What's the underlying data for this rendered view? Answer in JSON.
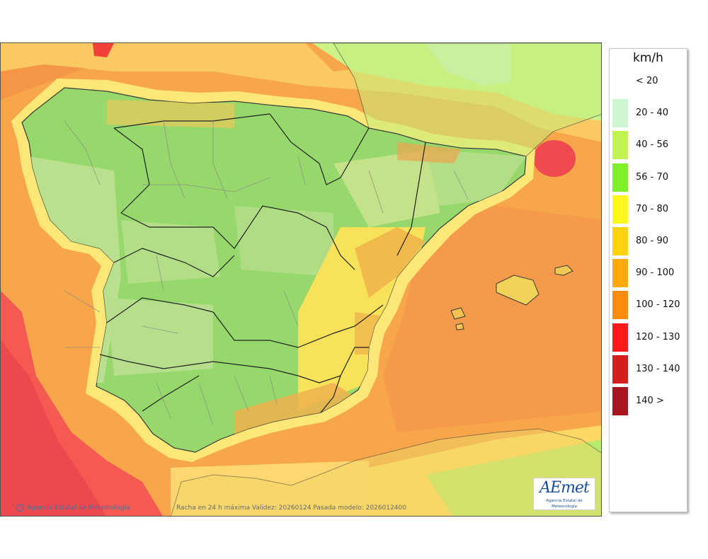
{
  "legend": {
    "unit": "km/h",
    "items": [
      {
        "label": "< 20",
        "color": "#ffffff"
      },
      {
        "label": "20 - 40",
        "color": "#ccf7d0"
      },
      {
        "label": "40 - 56",
        "color": "#c0f450"
      },
      {
        "label": "56 - 70",
        "color": "#7ef028"
      },
      {
        "label": "70 - 80",
        "color": "#fff81c"
      },
      {
        "label": "80 - 90",
        "color": "#ffd20e"
      },
      {
        "label": "90 - 100",
        "color": "#ffa90a"
      },
      {
        "label": "100 - 120",
        "color": "#ff8a0c"
      },
      {
        "label": "120 - 130",
        "color": "#ff1919"
      },
      {
        "label": "130 - 140",
        "color": "#d51f1f"
      },
      {
        "label": "140 >",
        "color": "#a8151e"
      }
    ]
  },
  "credits": {
    "agency": "Agencia Estatal de Meteorología",
    "caption": "Racha en 24 h máxima  Validez: 20260124 Pasada modelo: 2026012400"
  },
  "logo": {
    "word": "AEmet",
    "subtitle": "Agencia Estatal de Meteorología"
  },
  "colors": {
    "land_green": "#95d76a",
    "land_light": "#c1df9a",
    "sea_orange": "#f8a14b",
    "strong_red": "#f54e4e",
    "coast_yellow": "#ffe168"
  }
}
